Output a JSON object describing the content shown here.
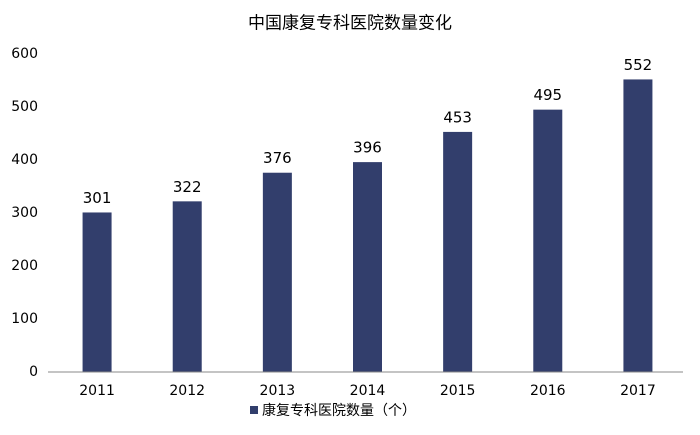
{
  "chart_data": {
    "type": "bar",
    "title": "中国康复专科医院数量变化",
    "categories": [
      "2011",
      "2012",
      "2013",
      "2014",
      "2015",
      "2016",
      "2017"
    ],
    "series": [
      {
        "name": "康复专科医院数量（个）",
        "color": "#323e6c",
        "values": [
          301,
          322,
          376,
          396,
          453,
          495,
          552
        ]
      }
    ],
    "ylim": [
      0,
      600
    ],
    "yticks": [
      0,
      100,
      200,
      300,
      400,
      500,
      600
    ],
    "grid": false,
    "legend": "bottom"
  }
}
